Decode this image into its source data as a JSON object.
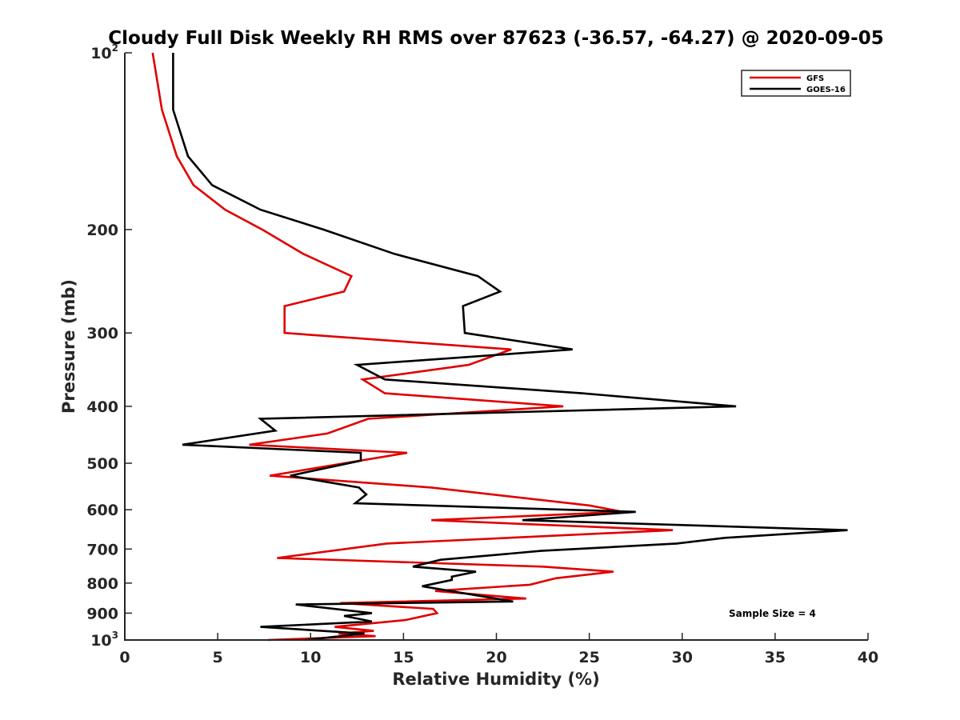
{
  "chart_data": {
    "type": "line",
    "title": "Cloudy Full Disk Weekly RH RMS over 87623 (-36.57, -64.27) @ 2020-09-05",
    "xlabel": "Relative Humidity (%)",
    "ylabel": "Pressure (mb)",
    "xlim": [
      0,
      40
    ],
    "ylim": [
      100,
      1000
    ],
    "y_scale": "log",
    "y_reversed": true,
    "x_ticks": [
      "0",
      "5",
      "10",
      "15",
      "20",
      "25",
      "30",
      "35",
      "40"
    ],
    "y_ticks": [
      {
        "value": 100,
        "base": "10",
        "exp": "2"
      },
      {
        "value": 200,
        "label": "200"
      },
      {
        "value": 300,
        "label": "300"
      },
      {
        "value": 400,
        "label": "400"
      },
      {
        "value": 500,
        "label": "500"
      },
      {
        "value": 600,
        "label": "600"
      },
      {
        "value": 700,
        "label": "700"
      },
      {
        "value": 800,
        "label": "800"
      },
      {
        "value": 900,
        "label": "900"
      },
      {
        "value": 1000,
        "base": "10",
        "exp": "3"
      }
    ],
    "grid": false,
    "legend_position": "top-right",
    "annotation": "Sample Size = 4",
    "series": [
      {
        "name": "GFS",
        "color": "#e00000",
        "points": [
          [
            1.5,
            100
          ],
          [
            2.0,
            125
          ],
          [
            2.8,
            150
          ],
          [
            3.7,
            168
          ],
          [
            5.4,
            185
          ],
          [
            7.4,
            200
          ],
          [
            9.6,
            220
          ],
          [
            12.2,
            240
          ],
          [
            11.8,
            255
          ],
          [
            8.6,
            270
          ],
          [
            8.6,
            300
          ],
          [
            20.8,
            320
          ],
          [
            18.5,
            340
          ],
          [
            12.8,
            360
          ],
          [
            14.0,
            380
          ],
          [
            23.6,
            400
          ],
          [
            13.1,
            420
          ],
          [
            10.9,
            445
          ],
          [
            6.7,
            465
          ],
          [
            15.2,
            480
          ],
          [
            7.8,
            525
          ],
          [
            16.5,
            550
          ],
          [
            25.0,
            590
          ],
          [
            26.8,
            605
          ],
          [
            16.5,
            625
          ],
          [
            29.5,
            650
          ],
          [
            14.1,
            685
          ],
          [
            8.2,
            725
          ],
          [
            22.5,
            750
          ],
          [
            26.3,
            765
          ],
          [
            23.2,
            785
          ],
          [
            21.8,
            805
          ],
          [
            16.7,
            825
          ],
          [
            21.6,
            850
          ],
          [
            11.6,
            865
          ],
          [
            16.6,
            885
          ],
          [
            16.8,
            900
          ],
          [
            15.1,
            925
          ],
          [
            11.3,
            950
          ],
          [
            13.4,
            965
          ],
          [
            11.5,
            975
          ],
          [
            13.5,
            985
          ],
          [
            7.7,
            1000
          ]
        ]
      },
      {
        "name": "GOES-16",
        "color": "#000000",
        "points": [
          [
            2.6,
            100
          ],
          [
            2.6,
            125
          ],
          [
            3.4,
            150
          ],
          [
            4.7,
            168
          ],
          [
            7.3,
            185
          ],
          [
            10.7,
            200
          ],
          [
            14.5,
            220
          ],
          [
            19.0,
            240
          ],
          [
            20.2,
            255
          ],
          [
            18.2,
            270
          ],
          [
            18.3,
            300
          ],
          [
            24.1,
            320
          ],
          [
            12.5,
            340
          ],
          [
            14.0,
            360
          ],
          [
            24.6,
            380
          ],
          [
            32.9,
            400
          ],
          [
            7.3,
            420
          ],
          [
            8.1,
            440
          ],
          [
            3.1,
            465
          ],
          [
            12.7,
            480
          ],
          [
            12.7,
            495
          ],
          [
            8.9,
            525
          ],
          [
            12.6,
            550
          ],
          [
            13.0,
            565
          ],
          [
            12.4,
            585
          ],
          [
            27.5,
            605
          ],
          [
            21.4,
            625
          ],
          [
            38.9,
            650
          ],
          [
            32.3,
            670
          ],
          [
            29.7,
            685
          ],
          [
            22.4,
            705
          ],
          [
            17.0,
            730
          ],
          [
            15.5,
            750
          ],
          [
            18.9,
            765
          ],
          [
            17.6,
            780
          ],
          [
            17.6,
            790
          ],
          [
            16.0,
            810
          ],
          [
            20.9,
            860
          ],
          [
            9.2,
            870
          ],
          [
            13.3,
            900
          ],
          [
            11.8,
            910
          ],
          [
            13.3,
            930
          ],
          [
            7.3,
            950
          ],
          [
            12.9,
            975
          ],
          [
            9.7,
            1000
          ]
        ]
      }
    ]
  }
}
